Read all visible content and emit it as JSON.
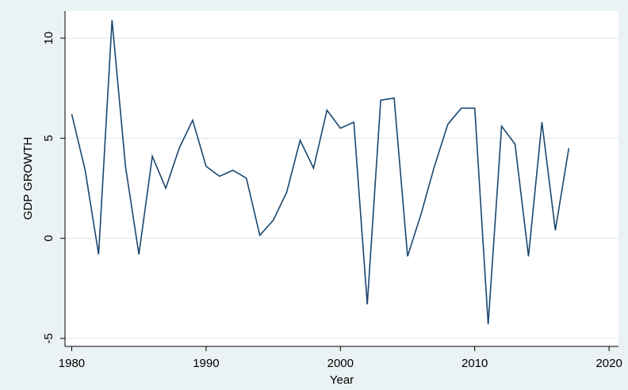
{
  "chart_data": {
    "type": "line",
    "x_label": "Year",
    "y_label": "GDP GROWTH",
    "x": [
      1980,
      1981,
      1982,
      1983,
      1984,
      1985,
      1986,
      1987,
      1988,
      1989,
      1990,
      1991,
      1992,
      1993,
      1994,
      1995,
      1996,
      1997,
      1998,
      1999,
      2000,
      2001,
      2002,
      2003,
      2004,
      2005,
      2006,
      2007,
      2008,
      2009,
      2010,
      2011,
      2012,
      2013,
      2014,
      2015,
      2016,
      2017
    ],
    "series": [
      {
        "name": "GDP GROWTH",
        "color": "#1a476f",
        "values": [
          6.2,
          3.4,
          -0.8,
          10.9,
          3.6,
          -0.8,
          4.1,
          2.5,
          4.5,
          5.9,
          3.6,
          3.1,
          3.4,
          3.0,
          0.15,
          0.9,
          2.3,
          4.9,
          3.5,
          6.4,
          5.5,
          5.8,
          -3.3,
          6.9,
          7.0,
          -0.9,
          1.2,
          3.6,
          5.7,
          6.5,
          6.5,
          -4.3,
          5.6,
          4.7,
          -0.9,
          5.8,
          0.4,
          4.5
        ]
      }
    ],
    "xlim": [
      1979.5,
      2020.7
    ],
    "xticks": [
      1980,
      1990,
      2000,
      2010,
      2020
    ],
    "ylim": [
      -5.4,
      11.35
    ],
    "yticks": [
      -5,
      0,
      5,
      10
    ],
    "grid": true
  }
}
